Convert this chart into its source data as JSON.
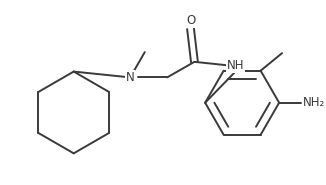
{
  "background_color": "#ffffff",
  "line_color": "#3a3a3a",
  "line_width": 1.4,
  "font_size": 8.5,
  "figsize": [
    3.26,
    1.85
  ],
  "dpi": 100,
  "xlim": [
    0,
    326
  ],
  "ylim": [
    0,
    185
  ]
}
